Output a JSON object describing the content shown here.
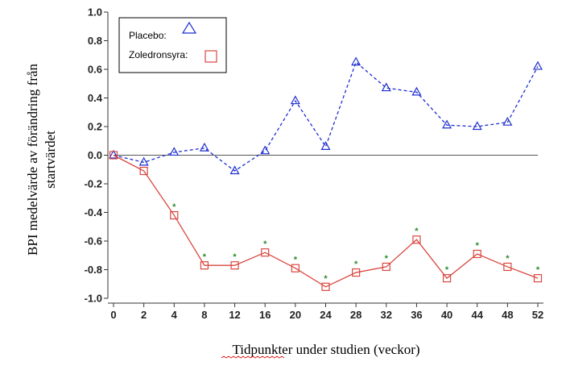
{
  "chart_data": {
    "type": "line",
    "title": "",
    "xlabel": "Tidpunkter under studien (veckor)",
    "ylabel_lines": [
      "BPI medelvärde av förändring från",
      "startvärdet"
    ],
    "x": [
      0,
      2,
      4,
      8,
      12,
      16,
      20,
      24,
      28,
      32,
      36,
      40,
      44,
      48,
      52
    ],
    "ylim": [
      -1.0,
      1.0
    ],
    "yticks": [
      "1.0",
      "0.8",
      "0.6",
      "0.4",
      "0.2",
      "0.0",
      "-0.2",
      "-0.4",
      "-0.6",
      "-0.8",
      "-1.0"
    ],
    "reference_line_y": 0.0,
    "significance_marker": "*",
    "legend_position": "top-left",
    "series": [
      {
        "name": "Placebo:",
        "marker": "triangle",
        "line_style": "dashed",
        "color": "#1f2fd0",
        "values": [
          0.0,
          -0.05,
          0.02,
          0.05,
          -0.11,
          0.03,
          0.38,
          0.06,
          0.65,
          0.47,
          0.44,
          0.21,
          0.2,
          0.23,
          0.62
        ]
      },
      {
        "name": "Zoledronsyra:",
        "marker": "square",
        "line_style": "solid",
        "color": "#d9473f",
        "values": [
          0.0,
          -0.11,
          -0.42,
          -0.77,
          -0.77,
          -0.68,
          -0.79,
          -0.92,
          -0.82,
          -0.78,
          -0.59,
          -0.86,
          -0.69,
          -0.78,
          -0.86
        ],
        "significant": [
          false,
          false,
          true,
          true,
          true,
          true,
          true,
          true,
          true,
          true,
          true,
          true,
          true,
          true,
          true
        ]
      }
    ]
  }
}
